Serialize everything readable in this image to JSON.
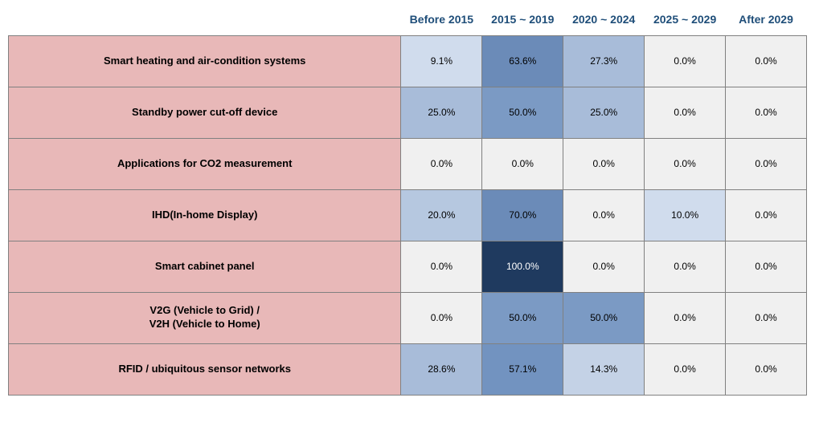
{
  "table": {
    "type": "heatmap-table",
    "row_label_bg": "#e8b8b8",
    "row_label_text": "#000000",
    "header_text": "#1f4e79",
    "border_color": "#808080",
    "header_fontsize": 14,
    "label_fontsize": 13,
    "cell_fontsize": 12,
    "columns": [
      "Before\n2015",
      "2015 ~\n2019",
      "2020 ~\n2024",
      "2025 ~\n2029",
      "After\n2029"
    ],
    "rows": [
      {
        "label": "Smart heating and air-condition systems",
        "cells": [
          {
            "text": "9.1%",
            "bg": "#d0dced"
          },
          {
            "text": "63.6%",
            "bg": "#6b8bb8"
          },
          {
            "text": "27.3%",
            "bg": "#a8bcd9"
          },
          {
            "text": "0.0%",
            "bg": "#f0f0f0"
          },
          {
            "text": "0.0%",
            "bg": "#f0f0f0"
          }
        ]
      },
      {
        "label": "Standby power cut-off device",
        "cells": [
          {
            "text": "25.0%",
            "bg": "#a8bcd9"
          },
          {
            "text": "50.0%",
            "bg": "#7b9ac4"
          },
          {
            "text": "25.0%",
            "bg": "#a8bcd9"
          },
          {
            "text": "0.0%",
            "bg": "#f0f0f0"
          },
          {
            "text": "0.0%",
            "bg": "#f0f0f0"
          }
        ]
      },
      {
        "label": "Applications for CO2 measurement",
        "cells": [
          {
            "text": "0.0%",
            "bg": "#f0f0f0"
          },
          {
            "text": "0.0%",
            "bg": "#f0f0f0"
          },
          {
            "text": "0.0%",
            "bg": "#f0f0f0"
          },
          {
            "text": "0.0%",
            "bg": "#f0f0f0"
          },
          {
            "text": "0.0%",
            "bg": "#f0f0f0"
          }
        ]
      },
      {
        "label": "IHD(In-home Display)",
        "cells": [
          {
            "text": "20.0%",
            "bg": "#b6c8e0"
          },
          {
            "text": "70.0%",
            "bg": "#6b8bb8"
          },
          {
            "text": "0.0%",
            "bg": "#f0f0f0"
          },
          {
            "text": "10.0%",
            "bg": "#d0dced"
          },
          {
            "text": "0.0%",
            "bg": "#f0f0f0"
          }
        ]
      },
      {
        "label": "Smart cabinet panel",
        "cells": [
          {
            "text": "0.0%",
            "bg": "#f0f0f0"
          },
          {
            "text": "100.0%",
            "bg": "#1f3a5f"
          },
          {
            "text": "0.0%",
            "bg": "#f0f0f0"
          },
          {
            "text": "0.0%",
            "bg": "#f0f0f0"
          },
          {
            "text": "0.0%",
            "bg": "#f0f0f0"
          }
        ]
      },
      {
        "label": "V2G (Vehicle to Grid) /\nV2H (Vehicle  to Home)",
        "cells": [
          {
            "text": "0.0%",
            "bg": "#f0f0f0"
          },
          {
            "text": "50.0%",
            "bg": "#7b9ac4"
          },
          {
            "text": "50.0%",
            "bg": "#7b9ac4"
          },
          {
            "text": "0.0%",
            "bg": "#f0f0f0"
          },
          {
            "text": "0.0%",
            "bg": "#f0f0f0"
          }
        ]
      },
      {
        "label": "RFID / ubiquitous sensor networks",
        "cells": [
          {
            "text": "28.6%",
            "bg": "#a8bcd9"
          },
          {
            "text": "57.1%",
            "bg": "#7293c0"
          },
          {
            "text": "14.3%",
            "bg": "#c4d2e6"
          },
          {
            "text": "0.0%",
            "bg": "#f0f0f0"
          },
          {
            "text": "0.0%",
            "bg": "#f0f0f0"
          }
        ]
      }
    ]
  }
}
